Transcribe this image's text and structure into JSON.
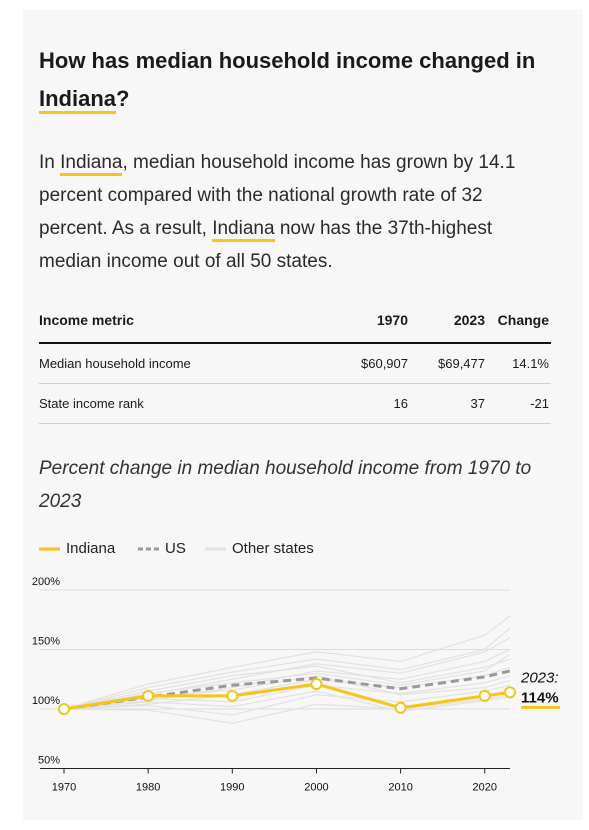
{
  "title": {
    "parts": [
      "How has median household income changed in",
      "Indiana",
      "?"
    ]
  },
  "paragraph": {
    "parts": [
      "In",
      "Indiana",
      ", median household income has grown by 14.1 percent compared with the national growth rate of 32 percent. As a result,",
      "Indiana",
      "now has the 37th-highest median income out of all 50 states."
    ]
  },
  "table": {
    "columns": [
      "Income metric",
      "1970",
      "2023",
      "Change"
    ],
    "rows": [
      [
        "Median household income",
        "$60,907",
        "$69,477",
        "14.1%"
      ],
      [
        "State income rank",
        "16",
        "37",
        "-21"
      ]
    ]
  },
  "chart_data": {
    "type": "line",
    "title": "Percent change in median household income from 1970 to 2023",
    "x": [
      1970,
      1980,
      1990,
      2000,
      2010,
      2020,
      2023
    ],
    "series": [
      {
        "name": "Indiana",
        "color": "#f5c518",
        "values": [
          100,
          111,
          111,
          121,
          101,
          111,
          114
        ],
        "value_labels": [
          null,
          null,
          null,
          null,
          null,
          null,
          "114%"
        ]
      },
      {
        "name": "US",
        "color": "#999999",
        "dashed": true,
        "values": [
          100,
          110,
          120,
          126,
          117,
          127,
          132
        ]
      }
    ],
    "other_states": {
      "name": "Other states",
      "color": "#e2e2e2",
      "lines": [
        [
          100,
          118,
          131,
          142,
          133,
          150,
          168
        ],
        [
          100,
          112,
          125,
          138,
          130,
          148,
          160
        ],
        [
          100,
          107,
          118,
          132,
          125,
          140,
          150
        ],
        [
          100,
          115,
          128,
          136,
          122,
          135,
          142
        ],
        [
          100,
          104,
          112,
          125,
          118,
          128,
          135
        ],
        [
          100,
          109,
          106,
          120,
          113,
          122,
          128
        ],
        [
          100,
          103,
          95,
          112,
          106,
          115,
          120
        ],
        [
          100,
          99,
          88,
          104,
          100,
          108,
          112
        ],
        [
          100,
          121,
          135,
          148,
          140,
          162,
          178
        ],
        [
          100,
          110,
          116,
          128,
          112,
          118,
          124
        ],
        [
          100,
          106,
          102,
          115,
          98,
          107,
          110
        ],
        [
          100,
          113,
          122,
          130,
          120,
          132,
          146
        ]
      ]
    },
    "annotation": "2023:",
    "xlim": [
      1970,
      2023
    ],
    "xticks": [
      1970,
      1980,
      1990,
      2000,
      2010,
      2020
    ],
    "ylim": [
      50,
      200
    ],
    "yticks": [
      {
        "value": 50,
        "label": "50%"
      },
      {
        "value": 100,
        "label": "100%"
      },
      {
        "value": 150,
        "label": "150%"
      },
      {
        "value": 200,
        "label": "200%"
      }
    ],
    "grid": true
  }
}
